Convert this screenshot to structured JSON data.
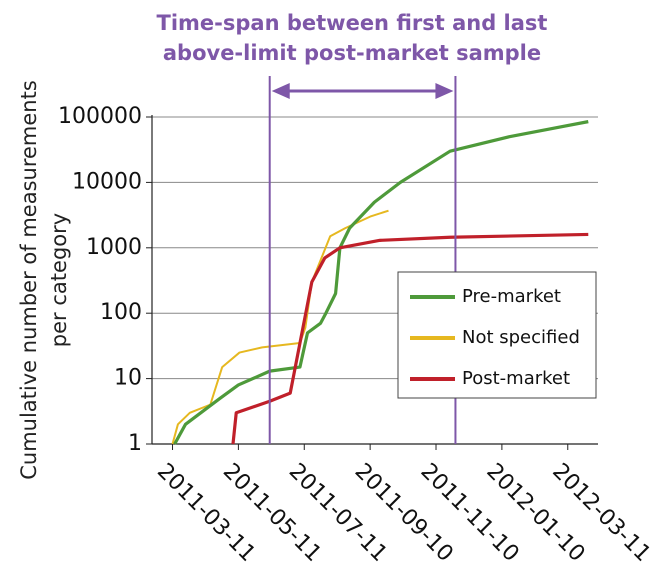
{
  "chart_data": {
    "type": "line",
    "title": [
      "Time-span between first and last",
      "above-limit post-market sample"
    ],
    "y_label": [
      "Cumulative number of measurements",
      "per category"
    ],
    "log_y": true,
    "grid": true,
    "legend": "right",
    "xlim": [
      "2011-02-20",
      "2012-04-08"
    ],
    "xticks": [
      "2011-03-11",
      "2011-05-11",
      "2011-07-11",
      "2011-09-10",
      "2011-11-10",
      "2012-01-10",
      "2012-03-11"
    ],
    "ylim": [
      1,
      100000
    ],
    "yticks": [
      1,
      10,
      100,
      1000,
      10000,
      100000
    ],
    "markers": [
      "2011-06-09",
      "2011-11-28"
    ],
    "marker_color": "#7e57a8",
    "series": [
      {
        "name": "Pre-market",
        "color": "#4e9a3a",
        "x": [
          "2011-03-13",
          "2011-03-23",
          "2011-04-24",
          "2011-05-11",
          "2011-06-09",
          "2011-07-07",
          "2011-07-14",
          "2011-07-26",
          "2011-07-31",
          "2011-08-09",
          "2011-08-13",
          "2011-08-22",
          "2011-09-14",
          "2011-10-08",
          "2011-11-23",
          "2012-01-17",
          "2012-03-30"
        ],
        "values": [
          1,
          2,
          5,
          8,
          13,
          15,
          50,
          70,
          100,
          200,
          1000,
          2000,
          5000,
          10000,
          30000,
          50000,
          85000
        ]
      },
      {
        "name": "Not specified",
        "color": "#e6b820",
        "x": [
          "2011-03-11",
          "2011-03-16",
          "2011-03-27",
          "2011-04-15",
          "2011-04-26",
          "2011-05-12",
          "2011-06-02",
          "2011-07-07",
          "2011-07-12",
          "2011-07-18",
          "2011-08-04",
          "2011-08-18",
          "2011-09-10",
          "2011-09-27"
        ],
        "values": [
          1,
          2,
          3,
          4,
          15,
          25,
          30,
          35,
          60,
          300,
          1500,
          2000,
          3000,
          3700
        ]
      },
      {
        "name": "Post-market",
        "color": "#c0202a",
        "x": [
          "2011-05-06",
          "2011-05-09",
          "2011-06-09",
          "2011-06-28",
          "2011-07-18",
          "2011-07-30",
          "2011-08-13",
          "2011-09-19",
          "2011-11-23",
          "2012-03-30"
        ],
        "values": [
          1,
          3,
          4.5,
          6,
          300,
          700,
          1000,
          1300,
          1450,
          1600
        ]
      }
    ]
  }
}
